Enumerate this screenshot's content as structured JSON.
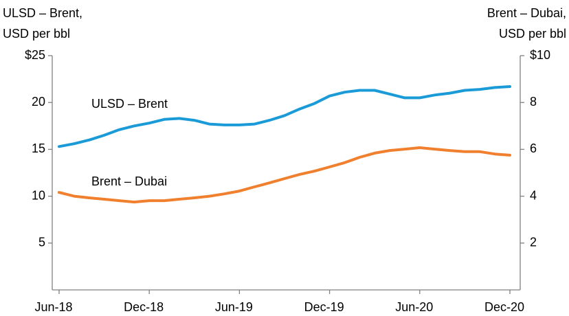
{
  "chart_data": {
    "type": "line",
    "ylabel": [
      "ULSD – Brent,",
      "USD per bbl"
    ],
    "y2label": [
      "Brent – Dubai,",
      "USD per bbl"
    ],
    "categories": [
      "Jun-18",
      null,
      null,
      null,
      null,
      null,
      "Dec-18",
      null,
      null,
      null,
      null,
      null,
      "Jun-19",
      null,
      null,
      null,
      null,
      null,
      "Dec-19",
      null,
      null,
      null,
      null,
      null,
      "Jun-20",
      null,
      null,
      null,
      null,
      null,
      "Dec-20"
    ],
    "series": [
      {
        "name": "ULSD – Brent",
        "color": "#1a9bd7",
        "axis": "y",
        "values": [
          15.3,
          15.6,
          16.0,
          16.5,
          17.1,
          17.5,
          17.8,
          18.2,
          18.3,
          18.1,
          17.7,
          17.6,
          17.6,
          17.7,
          18.1,
          18.6,
          19.3,
          19.9,
          20.7,
          21.1,
          21.3,
          21.3,
          20.9,
          20.5,
          20.5,
          20.8,
          21.0,
          21.3,
          21.4,
          21.6,
          21.7
        ]
      },
      {
        "name": "Brent – Dubai",
        "color": "#f07f2e",
        "axis": "y2",
        "values": [
          4.16,
          4.0,
          3.93,
          3.87,
          3.81,
          3.75,
          3.81,
          3.81,
          3.87,
          3.93,
          4.0,
          4.1,
          4.22,
          4.4,
          4.57,
          4.75,
          4.93,
          5.07,
          5.25,
          5.43,
          5.66,
          5.84,
          5.95,
          6.01,
          6.07,
          6.01,
          5.95,
          5.9,
          5.9,
          5.8,
          5.75
        ]
      }
    ],
    "ylim": [
      0,
      25
    ],
    "yticks": [
      5,
      10,
      15,
      20,
      {
        "value": 25,
        "label": "$25"
      }
    ],
    "y2lim": [
      0,
      10
    ],
    "y2ticks": [
      2,
      4,
      6,
      8,
      {
        "value": 10,
        "label": "$10"
      }
    ]
  }
}
